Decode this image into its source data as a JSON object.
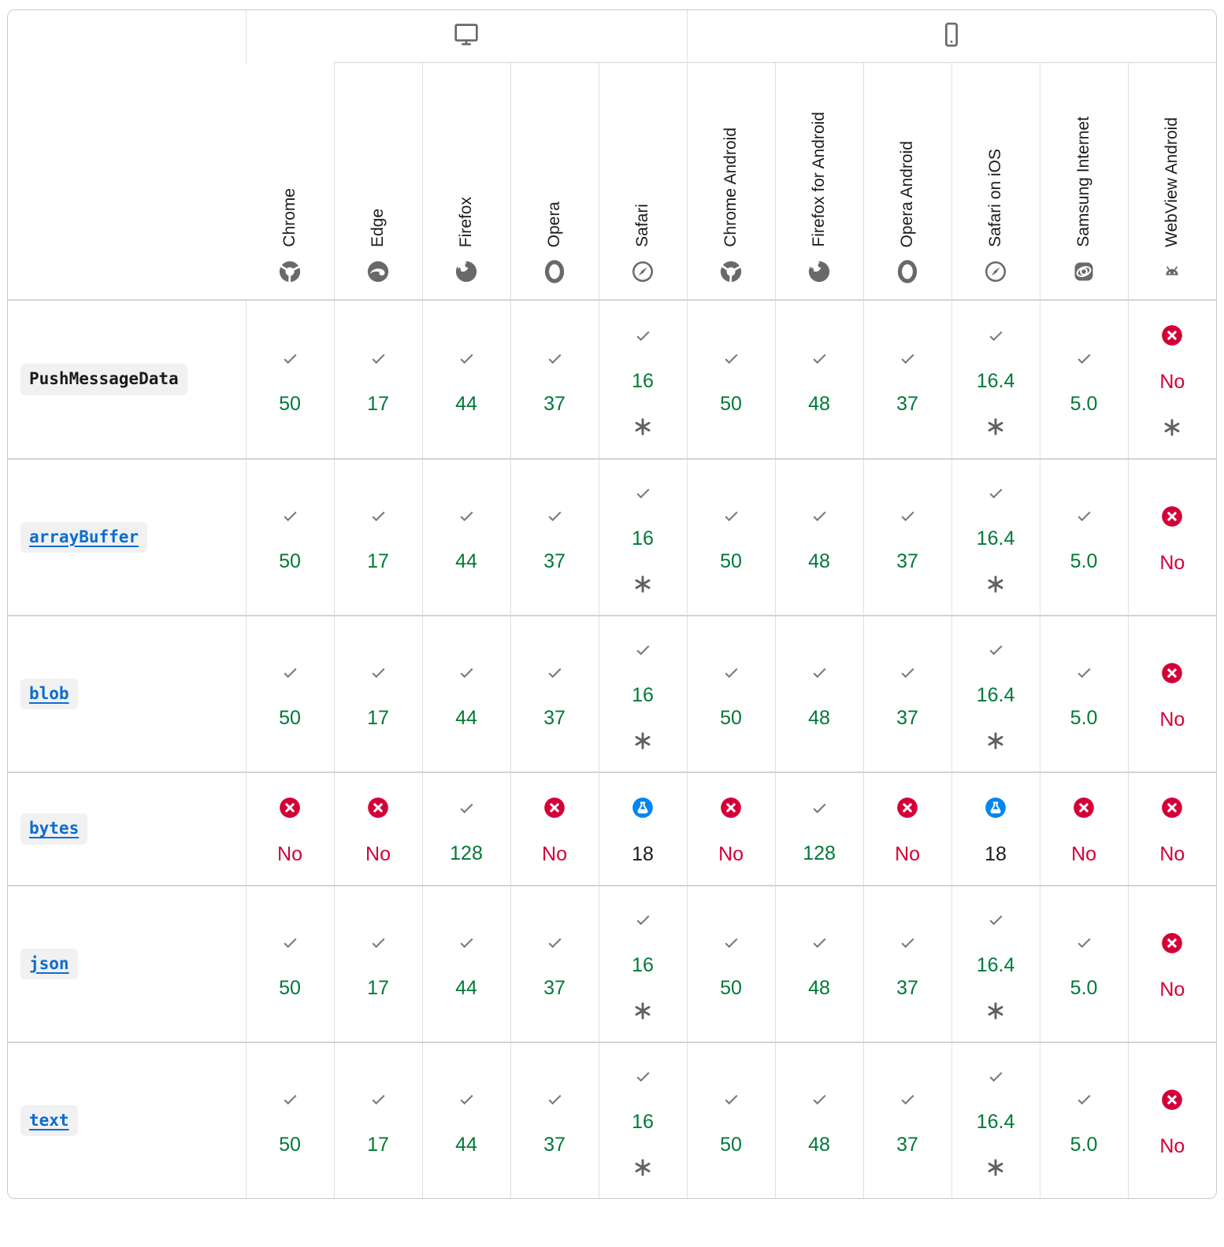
{
  "table": {
    "groups": [
      {
        "icon": "desktop-icon",
        "span": 5
      },
      {
        "icon": "mobile-icon",
        "span": 6
      }
    ],
    "browsers": [
      {
        "label": "Chrome",
        "icon": "chrome-icon"
      },
      {
        "label": "Edge",
        "icon": "edge-icon"
      },
      {
        "label": "Firefox",
        "icon": "firefox-icon"
      },
      {
        "label": "Opera",
        "icon": "opera-icon"
      },
      {
        "label": "Safari",
        "icon": "safari-icon"
      },
      {
        "label": "Chrome Android",
        "icon": "chrome-icon"
      },
      {
        "label": "Firefox for Android",
        "icon": "firefox-icon"
      },
      {
        "label": "Opera Android",
        "icon": "opera-icon"
      },
      {
        "label": "Safari on iOS",
        "icon": "safari-icon"
      },
      {
        "label": "Samsung Internet",
        "icon": "samsung-internet-icon"
      },
      {
        "label": "WebView Android",
        "icon": "webview-android-icon"
      }
    ],
    "rows": [
      {
        "feature": "PushMessageData",
        "is_link": false,
        "cells": [
          {
            "status": "yes",
            "version": "50"
          },
          {
            "status": "yes",
            "version": "17"
          },
          {
            "status": "yes",
            "version": "44"
          },
          {
            "status": "yes",
            "version": "37"
          },
          {
            "status": "yes",
            "version": "16",
            "note": true
          },
          {
            "status": "yes",
            "version": "50"
          },
          {
            "status": "yes",
            "version": "48"
          },
          {
            "status": "yes",
            "version": "37"
          },
          {
            "status": "yes",
            "version": "16.4",
            "note": true
          },
          {
            "status": "yes",
            "version": "5.0"
          },
          {
            "status": "no",
            "version": "No",
            "note": true
          }
        ]
      },
      {
        "feature": "arrayBuffer",
        "is_link": true,
        "cells": [
          {
            "status": "yes",
            "version": "50"
          },
          {
            "status": "yes",
            "version": "17"
          },
          {
            "status": "yes",
            "version": "44"
          },
          {
            "status": "yes",
            "version": "37"
          },
          {
            "status": "yes",
            "version": "16",
            "note": true
          },
          {
            "status": "yes",
            "version": "50"
          },
          {
            "status": "yes",
            "version": "48"
          },
          {
            "status": "yes",
            "version": "37"
          },
          {
            "status": "yes",
            "version": "16.4",
            "note": true
          },
          {
            "status": "yes",
            "version": "5.0"
          },
          {
            "status": "no",
            "version": "No"
          }
        ]
      },
      {
        "feature": "blob",
        "is_link": true,
        "cells": [
          {
            "status": "yes",
            "version": "50"
          },
          {
            "status": "yes",
            "version": "17"
          },
          {
            "status": "yes",
            "version": "44"
          },
          {
            "status": "yes",
            "version": "37"
          },
          {
            "status": "yes",
            "version": "16",
            "note": true
          },
          {
            "status": "yes",
            "version": "50"
          },
          {
            "status": "yes",
            "version": "48"
          },
          {
            "status": "yes",
            "version": "37"
          },
          {
            "status": "yes",
            "version": "16.4",
            "note": true
          },
          {
            "status": "yes",
            "version": "5.0"
          },
          {
            "status": "no",
            "version": "No"
          }
        ]
      },
      {
        "feature": "bytes",
        "is_link": true,
        "cells": [
          {
            "status": "no",
            "version": "No"
          },
          {
            "status": "no",
            "version": "No"
          },
          {
            "status": "yes",
            "version": "128"
          },
          {
            "status": "no",
            "version": "No"
          },
          {
            "status": "experimental",
            "version": "18"
          },
          {
            "status": "no",
            "version": "No"
          },
          {
            "status": "yes",
            "version": "128"
          },
          {
            "status": "no",
            "version": "No"
          },
          {
            "status": "experimental",
            "version": "18"
          },
          {
            "status": "no",
            "version": "No"
          },
          {
            "status": "no",
            "version": "No"
          }
        ]
      },
      {
        "feature": "json",
        "is_link": true,
        "cells": [
          {
            "status": "yes",
            "version": "50"
          },
          {
            "status": "yes",
            "version": "17"
          },
          {
            "status": "yes",
            "version": "44"
          },
          {
            "status": "yes",
            "version": "37"
          },
          {
            "status": "yes",
            "version": "16",
            "note": true
          },
          {
            "status": "yes",
            "version": "50"
          },
          {
            "status": "yes",
            "version": "48"
          },
          {
            "status": "yes",
            "version": "37"
          },
          {
            "status": "yes",
            "version": "16.4",
            "note": true
          },
          {
            "status": "yes",
            "version": "5.0"
          },
          {
            "status": "no",
            "version": "No"
          }
        ]
      },
      {
        "feature": "text",
        "is_link": true,
        "cells": [
          {
            "status": "yes",
            "version": "50"
          },
          {
            "status": "yes",
            "version": "17"
          },
          {
            "status": "yes",
            "version": "44"
          },
          {
            "status": "yes",
            "version": "37"
          },
          {
            "status": "yes",
            "version": "16",
            "note": true
          },
          {
            "status": "yes",
            "version": "50"
          },
          {
            "status": "yes",
            "version": "48"
          },
          {
            "status": "yes",
            "version": "37"
          },
          {
            "status": "yes",
            "version": "16.4",
            "note": true
          },
          {
            "status": "yes",
            "version": "5.0"
          },
          {
            "status": "no",
            "version": "No"
          }
        ]
      }
    ],
    "status_icons": {
      "yes": "check-icon",
      "no": "cross-circle-icon",
      "experimental": "experimental-beaker-icon",
      "note": "asterisk-note-icon"
    },
    "colors": {
      "supported_green": "#007936",
      "unsupported_red": "#d30038",
      "experimental_blue": "#0085f2",
      "link_blue": "#0b6cd2",
      "icon_grey": "#696969"
    }
  }
}
